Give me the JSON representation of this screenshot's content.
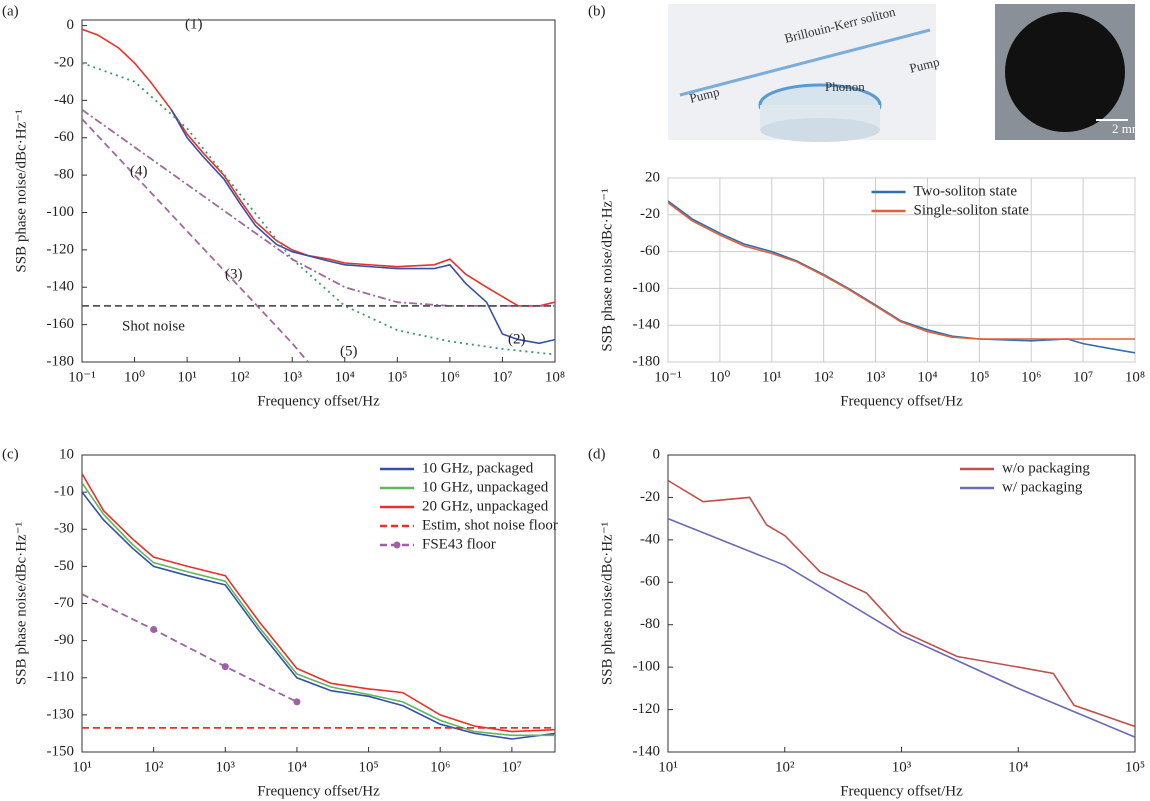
{
  "chart_data": [
    {
      "type": "line",
      "panel_label": "(a)",
      "xscale": "log",
      "xlabel": "Frequency offset/Hz",
      "ylabel": "SSB phase noise/dBc·Hz⁻¹",
      "xlim": [
        0.1,
        100000000
      ],
      "ylim": [
        -180,
        3
      ],
      "xticks": [
        {
          "value": 0.1,
          "label": "10⁻¹"
        },
        {
          "value": 1,
          "label": "10⁰"
        },
        {
          "value": 10,
          "label": "10¹"
        },
        {
          "value": 100,
          "label": "10²"
        },
        {
          "value": 1000,
          "label": "10³"
        },
        {
          "value": 10000,
          "label": "10⁴"
        },
        {
          "value": 100000,
          "label": "10⁵"
        },
        {
          "value": 1000000,
          "label": "10⁶"
        },
        {
          "value": 10000000,
          "label": "10⁷"
        },
        {
          "value": 100000000,
          "label": "10⁸"
        }
      ],
      "yticks": [
        0,
        -20,
        -40,
        -60,
        -80,
        -100,
        -120,
        -140,
        -160,
        -180
      ],
      "grid": false,
      "annotations": [
        "(1)",
        "(2)",
        "(3)",
        "(4)",
        "(5)",
        "Shot noise"
      ],
      "series": [
        {
          "color": "#e8312a",
          "dash": "solid",
          "x": [
            0.1,
            0.2,
            0.5,
            1,
            2,
            5,
            10,
            20,
            50,
            100,
            200,
            500,
            1000,
            2000,
            5000,
            10000,
            100000,
            500000,
            1000000,
            2000000,
            5000000,
            10000000,
            20000000,
            50000000,
            100000000
          ],
          "values": [
            -2,
            -5,
            -12,
            -20,
            -30,
            -45,
            -58,
            -68,
            -80,
            -93,
            -105,
            -115,
            -120,
            -123,
            -125,
            -127,
            -129,
            -128,
            -125,
            -133,
            -140,
            -145,
            -150,
            -150,
            -148
          ]
        },
        {
          "color": "#3550a8",
          "dash": "solid",
          "x": [
            5,
            10,
            20,
            50,
            100,
            200,
            500,
            1000,
            5000,
            10000,
            100000,
            500000,
            1000000,
            2000000,
            5000000,
            10000000,
            20000000,
            50000000,
            100000000
          ],
          "values": [
            -45,
            -60,
            -70,
            -82,
            -95,
            -107,
            -117,
            -121,
            -126,
            -128,
            -130,
            -130,
            -128,
            -138,
            -148,
            -165,
            -168,
            -170,
            -168
          ]
        },
        {
          "color": "#3a9a6a",
          "dash": "dotted",
          "x": [
            0.1,
            1,
            10,
            100,
            1000,
            10000,
            100000,
            1000000,
            10000000,
            100000000
          ],
          "values": [
            -20,
            -30,
            -55,
            -90,
            -125,
            -150,
            -163,
            -169,
            -173,
            -176
          ]
        },
        {
          "color": "#a06a9a",
          "dash": "dashdot",
          "x": [
            0.1,
            1,
            10,
            100,
            1000,
            10000,
            100000,
            1000000,
            100000000
          ],
          "values": [
            -45,
            -65,
            -85,
            -105,
            -125,
            -140,
            -148,
            -150,
            -150
          ]
        },
        {
          "color": "#a06a9a",
          "dash": "dashed",
          "x": [
            0.1,
            1,
            10,
            100,
            1000,
            2000
          ],
          "values": [
            -50,
            -80,
            -110,
            -140,
            -170,
            -180
          ]
        },
        {
          "color": "#555555",
          "dash": "dashed",
          "x": [
            0.1,
            100000000
          ],
          "values": [
            -150,
            -150
          ]
        }
      ]
    },
    {
      "type": "line",
      "panel_label": "(b)",
      "xscale": "log",
      "xlabel": "Frequency offset/Hz",
      "ylabel": "SSB phase noise/dBc·Hz⁻¹",
      "xlim": [
        0.1,
        100000000
      ],
      "ylim": [
        -180,
        20
      ],
      "xticks": [
        {
          "value": 0.1,
          "label": "10⁻¹"
        },
        {
          "value": 1,
          "label": "10⁰"
        },
        {
          "value": 10,
          "label": "10¹"
        },
        {
          "value": 100,
          "label": "10²"
        },
        {
          "value": 1000,
          "label": "10³"
        },
        {
          "value": 10000,
          "label": "10⁴"
        },
        {
          "value": 100000,
          "label": "10⁵"
        },
        {
          "value": 1000000,
          "label": "10⁶"
        },
        {
          "value": 10000000,
          "label": "10⁷"
        },
        {
          "value": 100000000,
          "label": "10⁸"
        }
      ],
      "yticks": [
        20,
        -20,
        -60,
        -100,
        -140,
        -180
      ],
      "grid": true,
      "legend": "upper center",
      "annotations": [
        "Brillouin-Kerr soliton",
        "Pump",
        "Pump",
        "Phonon",
        "2 mm"
      ],
      "series": [
        {
          "name": "Two-soliton state",
          "color": "#2f6fb0",
          "dash": "solid",
          "x": [
            0.1,
            0.3,
            1,
            3,
            10,
            30,
            100,
            300,
            1000,
            3000,
            10000,
            30000,
            100000,
            1000000,
            5000000,
            10000000,
            30000000,
            100000000
          ],
          "values": [
            -5,
            -25,
            -40,
            -52,
            -60,
            -70,
            -85,
            -100,
            -118,
            -135,
            -145,
            -152,
            -155,
            -157,
            -155,
            -160,
            -165,
            -170
          ]
        },
        {
          "name": "Single-soliton state",
          "color": "#e0603a",
          "dash": "solid",
          "x": [
            0.1,
            0.3,
            1,
            3,
            10,
            30,
            100,
            300,
            1000,
            3000,
            10000,
            30000,
            100000,
            1000000,
            5000000,
            10000000,
            30000000,
            100000000
          ],
          "values": [
            -7,
            -27,
            -42,
            -54,
            -62,
            -71,
            -86,
            -101,
            -119,
            -136,
            -147,
            -153,
            -155,
            -155,
            -155,
            -155,
            -155,
            -155
          ]
        }
      ]
    },
    {
      "type": "line",
      "panel_label": "(c)",
      "xscale": "log",
      "xlabel": "Frequency offset/Hz",
      "ylabel": "SSB phase noise/dBc·Hz⁻¹",
      "xlim": [
        10,
        40000000
      ],
      "ylim": [
        -150,
        10
      ],
      "xticks": [
        {
          "value": 10,
          "label": "10¹"
        },
        {
          "value": 100,
          "label": "10²"
        },
        {
          "value": 1000,
          "label": "10³"
        },
        {
          "value": 10000,
          "label": "10⁴"
        },
        {
          "value": 100000,
          "label": "10⁵"
        },
        {
          "value": 1000000,
          "label": "10⁶"
        },
        {
          "value": 10000000,
          "label": "10⁷"
        }
      ],
      "yticks": [
        10,
        -10,
        -30,
        -50,
        -70,
        -90,
        -110,
        -130,
        -150
      ],
      "grid": false,
      "legend": "upper right",
      "series": [
        {
          "name": "10 GHz, packaged",
          "color": "#3550a8",
          "dash": "solid",
          "x": [
            10,
            20,
            50,
            100,
            300,
            1000,
            3000,
            10000,
            30000,
            100000,
            300000,
            1000000,
            3000000,
            10000000,
            40000000
          ],
          "values": [
            -10,
            -25,
            -40,
            -50,
            -55,
            -60,
            -85,
            -110,
            -117,
            -120,
            -125,
            -135,
            -140,
            -143,
            -140
          ]
        },
        {
          "name": "10 GHz, unpackaged",
          "color": "#5cb85c",
          "dash": "solid",
          "x": [
            10,
            20,
            50,
            100,
            300,
            1000,
            3000,
            10000,
            30000,
            100000,
            300000,
            1000000,
            3000000,
            10000000,
            40000000
          ],
          "values": [
            -5,
            -22,
            -38,
            -48,
            -53,
            -58,
            -83,
            -108,
            -115,
            -119,
            -123,
            -133,
            -139,
            -141,
            -141
          ]
        },
        {
          "name": "20 GHz, unpackaged",
          "color": "#e8312a",
          "dash": "solid",
          "x": [
            10,
            20,
            50,
            100,
            300,
            1000,
            3000,
            10000,
            30000,
            100000,
            300000,
            1000000,
            3000000,
            10000000,
            40000000
          ],
          "values": [
            0,
            -20,
            -35,
            -45,
            -50,
            -55,
            -80,
            -105,
            -113,
            -116,
            -118,
            -130,
            -136,
            -139,
            -138
          ]
        },
        {
          "name": "Estim, shot noise floor",
          "color": "#e8312a",
          "dash": "dashed",
          "x": [
            10,
            40000000
          ],
          "values": [
            -137,
            -137
          ]
        },
        {
          "name": "FSE43 floor",
          "color": "#a060a8",
          "dash": "dashed",
          "marker": "circle",
          "x": [
            10,
            100,
            1000,
            10000
          ],
          "values": [
            -65,
            -84,
            -104,
            -123
          ]
        }
      ]
    },
    {
      "type": "line",
      "panel_label": "(d)",
      "xscale": "log",
      "xlabel": "Frequency offset/Hz",
      "ylabel": "SSB phase noise/dBc·Hz⁻¹",
      "xlim": [
        10,
        100000
      ],
      "ylim": [
        -140,
        0
      ],
      "xticks": [
        {
          "value": 10,
          "label": "10¹"
        },
        {
          "value": 100,
          "label": "10²"
        },
        {
          "value": 1000,
          "label": "10³"
        },
        {
          "value": 10000,
          "label": "10⁴"
        },
        {
          "value": 100000,
          "label": "10⁵"
        }
      ],
      "yticks": [
        0,
        -20,
        -40,
        -60,
        -80,
        -100,
        -120,
        -140
      ],
      "grid": false,
      "legend": "upper right",
      "series": [
        {
          "name": "w/o packaging",
          "color": "#c0504d",
          "dash": "solid",
          "x": [
            10,
            20,
            50,
            70,
            100,
            200,
            500,
            1000,
            3000,
            10000,
            20000,
            30000,
            100000
          ],
          "values": [
            -12,
            -22,
            -20,
            -33,
            -38,
            -55,
            -65,
            -83,
            -95,
            -100,
            -103,
            -118,
            -128
          ]
        },
        {
          "name": "w/ packaging",
          "color": "#6a6ab8",
          "dash": "solid",
          "x": [
            10,
            100,
            1000,
            10000,
            100000
          ],
          "values": [
            -30,
            -52,
            -85,
            -110,
            -133
          ]
        }
      ]
    }
  ]
}
